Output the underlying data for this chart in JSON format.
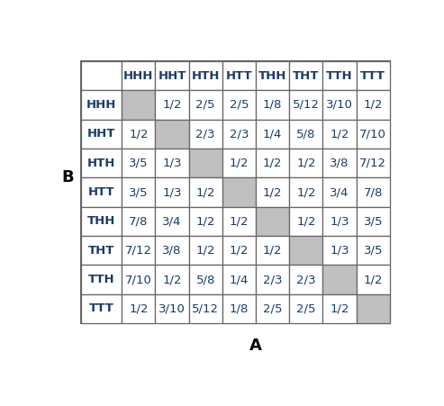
{
  "title_A": "A",
  "title_B": "B",
  "col_headers": [
    "HHH",
    "HHT",
    "HTH",
    "HTT",
    "THH",
    "THT",
    "TTH",
    "TTT"
  ],
  "row_headers": [
    "HHH",
    "HHT",
    "HTH",
    "HTT",
    "THH",
    "THT",
    "TTH",
    "TTT"
  ],
  "table": [
    [
      "",
      "1/2",
      "2/5",
      "2/5",
      "1/8",
      "5/12",
      "3/10",
      "1/2"
    ],
    [
      "1/2",
      "",
      "2/3",
      "2/3",
      "1/4",
      "5/8",
      "1/2",
      "7/10"
    ],
    [
      "3/5",
      "1/3",
      "",
      "1/2",
      "1/2",
      "1/2",
      "3/8",
      "7/12"
    ],
    [
      "3/5",
      "1/3",
      "1/2",
      "",
      "1/2",
      "1/2",
      "3/4",
      "7/8"
    ],
    [
      "7/8",
      "3/4",
      "1/2",
      "1/2",
      "",
      "1/2",
      "1/3",
      "3/5"
    ],
    [
      "7/12",
      "3/8",
      "1/2",
      "1/2",
      "1/2",
      "",
      "1/3",
      "3/5"
    ],
    [
      "7/10",
      "1/2",
      "5/8",
      "1/4",
      "2/3",
      "2/3",
      "",
      "1/2"
    ],
    [
      "1/2",
      "3/10",
      "5/12",
      "1/8",
      "2/5",
      "2/5",
      "1/2",
      ""
    ]
  ],
  "gray_color": "#c0c0c0",
  "white_color": "#ffffff",
  "text_color": "#1a3a6b",
  "header_text_color": "#1a3a6b",
  "border_color": "#666666",
  "background": "#ffffff",
  "font_size": 9.5,
  "header_font_size": 9.5
}
